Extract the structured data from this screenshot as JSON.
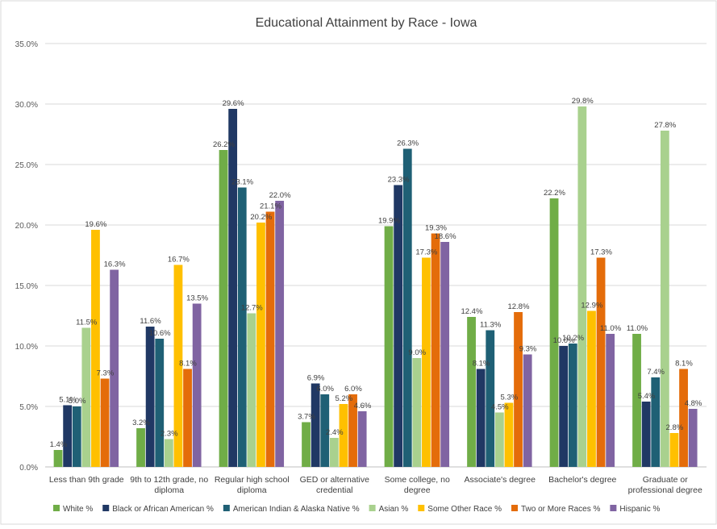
{
  "chart_data": {
    "type": "bar",
    "title": "Educational Attainment by Race - Iowa",
    "xlabel": "",
    "ylabel": "",
    "ylim": [
      0,
      35
    ],
    "yticks": [
      "0.0%",
      "5.0%",
      "10.0%",
      "15.0%",
      "20.0%",
      "25.0%",
      "30.0%",
      "35.0%"
    ],
    "grid": true,
    "legend_position": "bottom",
    "categories": [
      [
        "Less than 9th grade"
      ],
      [
        "9th to 12th grade, no",
        "diploma"
      ],
      [
        "Regular high school",
        "diploma"
      ],
      [
        "GED or alternative",
        "credential"
      ],
      [
        "Some college, no",
        "degree"
      ],
      [
        "Associate's degree"
      ],
      [
        "Bachelor's degree"
      ],
      [
        "Graduate or",
        "professional degree"
      ]
    ],
    "series": [
      {
        "name": "White %",
        "color": "#70ad47",
        "values": [
          1.4,
          3.2,
          26.2,
          3.7,
          19.9,
          12.4,
          22.2,
          11.0
        ],
        "labels": [
          "1.4%",
          "3.2%",
          "26.2%",
          "3.7%",
          "19.9%",
          "12.4%",
          "22.2%",
          "11.0%"
        ]
      },
      {
        "name": "Black or African American %",
        "color": "#203864",
        "values": [
          5.1,
          11.6,
          29.6,
          6.9,
          23.3,
          8.1,
          10.0,
          5.4
        ],
        "labels": [
          "5.1%",
          "11.6%",
          "29.6%",
          "6.9%",
          "23.3%",
          "8.1%",
          "10.0%",
          "5.4%"
        ]
      },
      {
        "name": "American Indian & Alaska Native %",
        "color": "#1f6075",
        "values": [
          5.0,
          10.6,
          23.1,
          6.0,
          26.3,
          11.3,
          10.2,
          7.4
        ],
        "labels": [
          "5.0%",
          "10.6%",
          "23.1%",
          "6.0%",
          "26.3%",
          "11.3%",
          "10.2%",
          "7.4%"
        ]
      },
      {
        "name": "Asian %",
        "color": "#a9d18e",
        "values": [
          11.5,
          2.3,
          12.7,
          2.4,
          9.0,
          4.5,
          29.8,
          27.8
        ],
        "labels": [
          "11.5%",
          "2.3%",
          "12.7%",
          "2.4%",
          "9.0%",
          "4.5%",
          "29.8%",
          "27.8%"
        ]
      },
      {
        "name": "Some Other Race %",
        "color": "#ffc000",
        "values": [
          19.6,
          16.7,
          20.2,
          5.2,
          17.3,
          5.3,
          12.9,
          2.8
        ],
        "labels": [
          "19.6%",
          "16.7%",
          "20.2%",
          "5.2%",
          "17.3%",
          "5.3%",
          "12.9%",
          "2.8%"
        ]
      },
      {
        "name": "Two or More Races %",
        "color": "#e46c0a",
        "values": [
          7.3,
          8.1,
          21.1,
          6.0,
          19.3,
          12.8,
          17.3,
          8.1
        ],
        "labels": [
          "7.3%",
          "8.1%",
          "21.1%",
          "6.0%",
          "19.3%",
          "12.8%",
          "17.3%",
          "8.1%"
        ]
      },
      {
        "name": "Hispanic %",
        "color": "#8064a2",
        "values": [
          16.3,
          13.5,
          22.0,
          4.6,
          18.6,
          9.3,
          11.0,
          4.8
        ],
        "labels": [
          "16.3%",
          "13.5%",
          "22.0%",
          "4.6%",
          "18.6%",
          "9.3%",
          "11.0%",
          "4.8%"
        ]
      }
    ]
  }
}
